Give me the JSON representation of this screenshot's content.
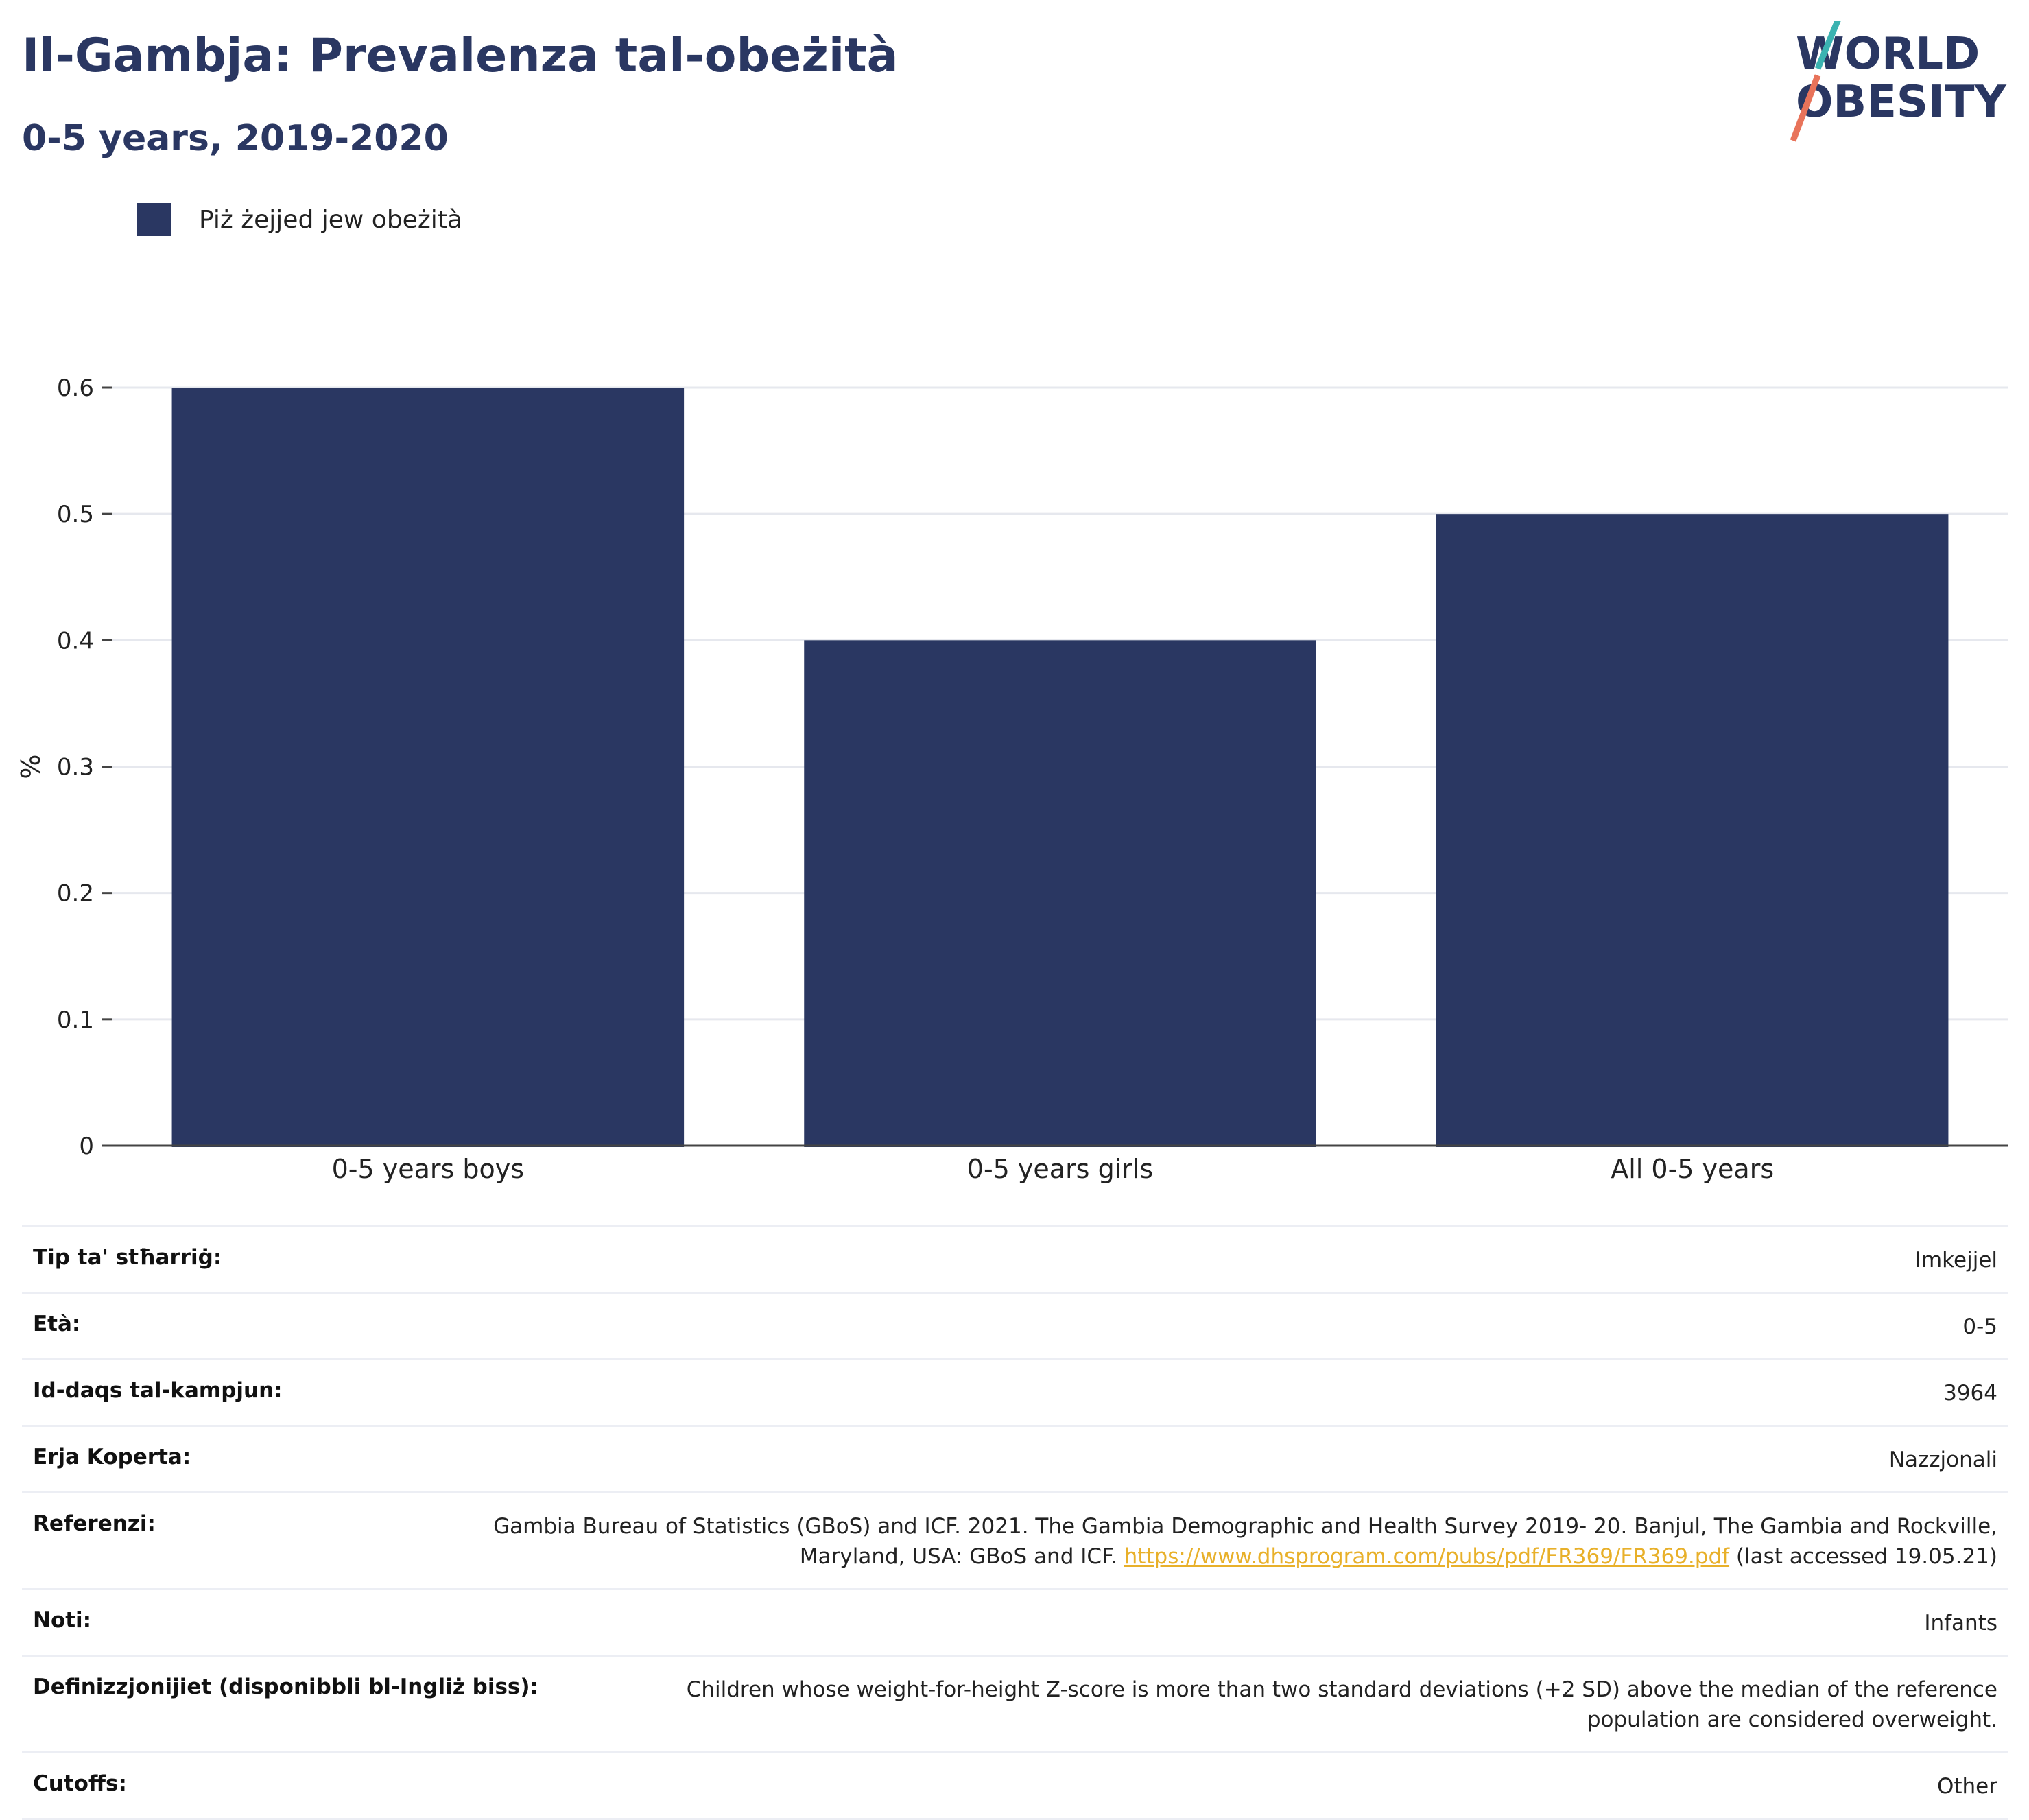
{
  "title": "Il-Gambja: Prevalenza tal-obeżità",
  "subtitle": "0-5 years, 2019-2020",
  "logo": {
    "line1": "WORLD",
    "line2": "OBESITY",
    "colors": {
      "text": "#2a3762",
      "slash_top": "#3bb3b1",
      "slash_bottom": "#e8735a"
    }
  },
  "legend": {
    "label": "Piż żejjed jew obeżità",
    "color": "#2a3762"
  },
  "chart_data": {
    "type": "bar",
    "categories": [
      "0-5 years boys",
      "0-5 years girls",
      "All 0-5 years"
    ],
    "series": [
      {
        "name": "Piż żejjed jew obeżità",
        "values": [
          0.6,
          0.4,
          0.5
        ],
        "color": "#2a3762"
      }
    ],
    "ylabel": "%",
    "xlabel": "",
    "ylim": [
      0,
      0.6
    ],
    "yticks": [
      "0",
      "0.1",
      "0.2",
      "0.3",
      "0.4",
      "0.5",
      "0.6"
    ],
    "grid": true,
    "legend_position": "top-left"
  },
  "meta": {
    "sample_type": {
      "label": "Tip ta' stħarriġ:",
      "value": "Imkejjel"
    },
    "age": {
      "label": "Età:",
      "value": "0-5"
    },
    "sample_size": {
      "label": "Id-daqs tal-kampjun:",
      "value": "3964"
    },
    "area": {
      "label": "Erja Koperta:",
      "value": "Nazzjonali"
    },
    "reference": {
      "label": "Referenzi:",
      "text_before": "Gambia Bureau of Statistics (GBoS) and ICF. 2021. The Gambia Demographic and Health Survey 2019- 20. Banjul, The Gambia and Rockville, Maryland, USA: GBoS and ICF.",
      "link": "https://www.dhsprogram.com/pubs/pdf/FR369/FR369.pdf",
      "text_after": "(last accessed 19.05.21)"
    },
    "notes": {
      "label": "Noti:",
      "value": "Infants"
    },
    "definitions": {
      "label": "Definizzjonijiet (disponibbli bl-Ingliż biss):",
      "value": "Children whose weight-for-height Z-score is more than two standard deviations (+2 SD) above the median of the reference population are considered overweight."
    },
    "cutoffs": {
      "label": "Cutoffs:",
      "value": "Other"
    }
  }
}
